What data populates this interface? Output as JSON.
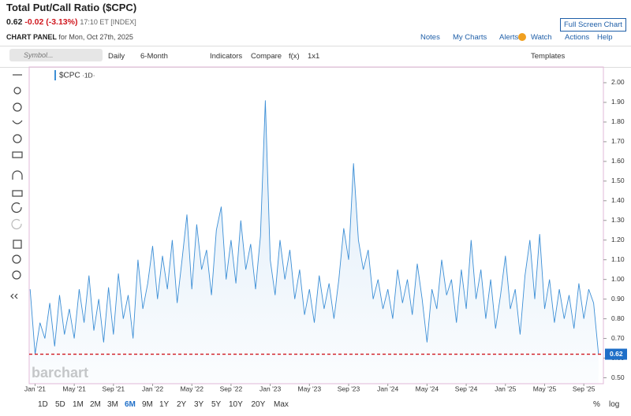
{
  "header": {
    "title": "Total Put/Call Ratio ($CPC)",
    "last": "0.62",
    "change": "-0.02 (-3.13%)",
    "time": "17:10 ET [INDEX]",
    "panel_label": "CHART PANEL",
    "panel_date": "for Mon, Oct 27th, 2025",
    "full_screen": "Full Screen Chart"
  },
  "menu": [
    "Notes",
    "My Charts",
    "Alerts",
    "Watch",
    "Actions",
    "Help"
  ],
  "toolbar": {
    "search": "Symbol...",
    "items": [
      "Daily",
      "6-Month",
      "Indicators",
      "Compare",
      "f(x)",
      "1x1"
    ],
    "templates": "Templates"
  },
  "legend": "$CPC",
  "legend_period": "·1D·",
  "watermark": "barchart",
  "ranges": [
    "1D",
    "5D",
    "1M",
    "2M",
    "3M",
    "6M",
    "9M",
    "1Y",
    "2Y",
    "3Y",
    "5Y",
    "10Y",
    "20Y",
    "Max"
  ],
  "scale_options": [
    "%",
    "log"
  ],
  "chart_data": {
    "type": "line",
    "x": [
      -0.5,
      0,
      0.5,
      1,
      1.5,
      2,
      2.5,
      3,
      3.5,
      4,
      4.5,
      5,
      5.5,
      6,
      6.5,
      7,
      7.5,
      8,
      8.5,
      9,
      9.5,
      10,
      10.5,
      11,
      11.5,
      12,
      12.5,
      13,
      13.5,
      14,
      14.5,
      15,
      15.5,
      16,
      16.5,
      17,
      17.5,
      18,
      18.5,
      19,
      19.5,
      20,
      20.5,
      21,
      21.5,
      22,
      22.5,
      23,
      23.5,
      24,
      24.5,
      25,
      25.5,
      26,
      26.5,
      27,
      27.5,
      28,
      28.5,
      29,
      29.5,
      30,
      30.5,
      31,
      31.5,
      32,
      32.5,
      33,
      33.5,
      34,
      34.5,
      35,
      35.5,
      36,
      36.5,
      37,
      37.5,
      38,
      38.5,
      39,
      39.5,
      40,
      40.5,
      41,
      41.5,
      42,
      42.5,
      43,
      43.5,
      44,
      44.5,
      45,
      45.5,
      46,
      46.5,
      47,
      47.5,
      48,
      48.5,
      49,
      49.5,
      50,
      50.5,
      51,
      51.5,
      52,
      52.5,
      53,
      53.5,
      54,
      54.5,
      55,
      55.5,
      56,
      56.5,
      57,
      57.5
    ],
    "series": [
      {
        "name": "$CPC",
        "color": "#3d8fd6",
        "values": [
          0.95,
          0.62,
          0.78,
          0.7,
          0.88,
          0.66,
          0.92,
          0.72,
          0.85,
          0.7,
          0.95,
          0.78,
          1.02,
          0.74,
          0.9,
          0.68,
          0.96,
          0.72,
          1.03,
          0.8,
          0.92,
          0.7,
          1.1,
          0.85,
          0.98,
          1.17,
          0.9,
          1.12,
          0.95,
          1.2,
          0.88,
          1.1,
          1.33,
          0.95,
          1.28,
          1.05,
          1.15,
          0.92,
          1.25,
          1.37,
          1.0,
          1.2,
          0.98,
          1.3,
          1.05,
          1.18,
          0.95,
          1.22,
          1.91,
          1.1,
          0.92,
          1.2,
          1.0,
          1.15,
          0.9,
          1.05,
          0.82,
          0.95,
          0.78,
          1.02,
          0.85,
          0.98,
          0.8,
          1.0,
          1.26,
          1.1,
          1.59,
          1.2,
          1.05,
          1.15,
          0.9,
          1.0,
          0.85,
          0.95,
          0.8,
          1.05,
          0.88,
          1.0,
          0.82,
          1.08,
          0.9,
          0.68,
          0.95,
          0.85,
          1.1,
          0.92,
          1.0,
          0.78,
          1.05,
          0.85,
          1.2,
          0.9,
          1.05,
          0.8,
          1.0,
          0.75,
          0.92,
          1.12,
          0.85,
          0.95,
          0.72,
          1.02,
          1.2,
          0.9,
          1.23,
          0.85,
          1.0,
          0.78,
          0.95,
          0.8,
          0.92,
          0.75,
          0.98,
          0.8,
          0.95,
          0.88,
          0.62
        ]
      }
    ],
    "xlim": [
      -0.6,
      58
    ],
    "xticks": [
      {
        "value": 0,
        "label": "Jan '21"
      },
      {
        "value": 4,
        "label": "May '21"
      },
      {
        "value": 8,
        "label": "Sep '21"
      },
      {
        "value": 12,
        "label": "Jan '22"
      },
      {
        "value": 16,
        "label": "May '22"
      },
      {
        "value": 20,
        "label": "Sep '22"
      },
      {
        "value": 24,
        "label": "Jan '23"
      },
      {
        "value": 28,
        "label": "May '23"
      },
      {
        "value": 32,
        "label": "Sep '23"
      },
      {
        "value": 36,
        "label": "Jan '24"
      },
      {
        "value": 40,
        "label": "May '24"
      },
      {
        "value": 44,
        "label": "Sep '24"
      },
      {
        "value": 48,
        "label": "Jan '25"
      },
      {
        "value": 52,
        "label": "May '25"
      },
      {
        "value": 56,
        "label": "Sep '25"
      }
    ],
    "ylim": [
      0.47,
      2.08
    ],
    "yticks": [
      {
        "value": 0.5,
        "label": "0.50"
      },
      {
        "value": 0.6,
        "label": "0.60"
      },
      {
        "value": 0.7,
        "label": "0.70"
      },
      {
        "value": 0.8,
        "label": "0.80"
      },
      {
        "value": 0.9,
        "label": "0.90"
      },
      {
        "value": 1.0,
        "label": "1.00"
      },
      {
        "value": 1.1,
        "label": "1.10"
      },
      {
        "value": 1.2,
        "label": "1.20"
      },
      {
        "value": 1.3,
        "label": "1.30"
      },
      {
        "value": 1.4,
        "label": "1.40"
      },
      {
        "value": 1.5,
        "label": "1.50"
      },
      {
        "value": 1.6,
        "label": "1.60"
      },
      {
        "value": 1.7,
        "label": "1.70"
      },
      {
        "value": 1.8,
        "label": "1.80"
      },
      {
        "value": 1.9,
        "label": "1.90"
      },
      {
        "value": 2.0,
        "label": "2.00"
      }
    ],
    "grid": false
  }
}
